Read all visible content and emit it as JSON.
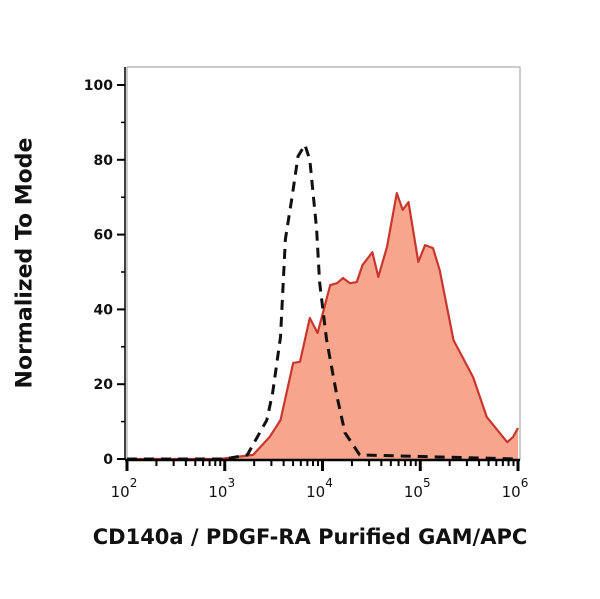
{
  "chart_data": {
    "type": "area",
    "title": "",
    "xlabel": "CD140a / PDGF-RA Purified GAM/APC",
    "ylabel": "Normalized To Mode",
    "x_scale": "log",
    "xlim": [
      100,
      1000000
    ],
    "ylim": [
      0,
      100
    ],
    "x_tick_labels": [
      {
        "base": "10",
        "exp": "2"
      },
      {
        "base": "10",
        "exp": "3"
      },
      {
        "base": "10",
        "exp": "4"
      },
      {
        "base": "10",
        "exp": "5"
      },
      {
        "base": "10",
        "exp": "6"
      }
    ],
    "x_tick_values": [
      100,
      1000,
      10000,
      100000,
      1000000
    ],
    "y_ticks": [
      0,
      20,
      40,
      60,
      80,
      100
    ],
    "grid": false,
    "series": [
      {
        "style": "filled",
        "fill_color": "#f7a58c",
        "line_color": "#c8372d",
        "x": [
          100,
          890,
          1950,
          2880,
          3720,
          5010,
          5890,
          7410,
          8910,
          12000,
          14100,
          16200,
          19100,
          22400,
          25700,
          32400,
          37200,
          45700,
          57500,
          66100,
          75900,
          95500,
          112000,
          135000,
          158000,
          219000,
          347000,
          479000,
          776000,
          891000,
          1000000
        ],
        "y": [
          0,
          0,
          1.1,
          5.9,
          10.4,
          25.7,
          26,
          37.7,
          33.7,
          46.5,
          47,
          48.4,
          47,
          47.3,
          51.9,
          55.3,
          48.7,
          56.7,
          71.1,
          66.6,
          68.7,
          52.7,
          57.2,
          56.4,
          50.5,
          31.8,
          21.9,
          11.2,
          4.5,
          5.9,
          8.3
        ]
      },
      {
        "style": "dashed",
        "line_color": "#111111",
        "x": [
          100,
          1000,
          1700,
          2690,
          3090,
          3720,
          4170,
          4900,
          5620,
          6610,
          7410,
          8710,
          9330,
          11000,
          14100,
          17000,
          24000,
          1000000
        ],
        "y": [
          0,
          0,
          1.1,
          10.4,
          17.6,
          32.6,
          58.8,
          70.3,
          80.9,
          84,
          80,
          61.5,
          47.3,
          32,
          16.6,
          7,
          1.1,
          0
        ]
      }
    ]
  }
}
